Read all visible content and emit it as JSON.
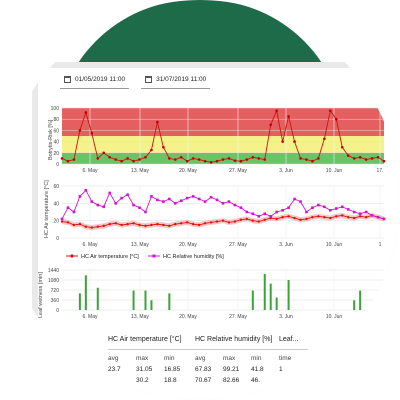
{
  "date_range": {
    "start": "01/05/2019 11:00",
    "end": "31/07/2019 11:00"
  },
  "colors": {
    "header_green": "#1e6b4a",
    "zone_red": "#e46060",
    "zone_yellow": "#f6f28a",
    "zone_green": "#6cc266",
    "line_red": "#e01010",
    "line_magenta": "#d014d0",
    "bar_green": "#3aa33a"
  },
  "chart_data": [
    {
      "type": "line",
      "ylabel": "Botrytis-Risk [%]",
      "ylim": [
        0,
        100
      ],
      "yticks": [
        "100",
        "80",
        "60",
        "40",
        "20",
        "0"
      ],
      "xticks": [
        "6. May",
        "13. May",
        "20. May",
        "27. May",
        "3. Jun",
        "10. Jun",
        "17."
      ],
      "zones": [
        {
          "name": "low",
          "from": 0,
          "to": 20,
          "color": "#6cc266"
        },
        {
          "name": "medium",
          "from": 20,
          "to": 50,
          "color": "#f6f28a"
        },
        {
          "name": "high",
          "from": 50,
          "to": 100,
          "color": "#e46060"
        }
      ],
      "series": [
        {
          "values": [
            10,
            5,
            8,
            60,
            92,
            55,
            10,
            20,
            12,
            8,
            5,
            10,
            5,
            8,
            12,
            25,
            75,
            30,
            10,
            8,
            12,
            5,
            10,
            8,
            5,
            3,
            5,
            8,
            10,
            6,
            5,
            8,
            12,
            10,
            8,
            70,
            95,
            40,
            85,
            40,
            10,
            8,
            5,
            10,
            45,
            95,
            80,
            30,
            15,
            10,
            12,
            8,
            10,
            12,
            5
          ]
        }
      ]
    },
    {
      "type": "line",
      "ylabel": "HC Air temperature [°C]",
      "ylim": [
        0,
        60
      ],
      "yticks": [
        "60",
        "40",
        "20",
        "0"
      ],
      "xticks": [
        "6. May",
        "13. May",
        "20. May",
        "27. May",
        "3. Jun",
        "10. Jun",
        "1"
      ],
      "legend": [
        "HC Air temperature [°C]",
        "HC Relative humidity [%]"
      ],
      "series": [
        {
          "name": "HC Air temperature [°C]",
          "values": [
            19,
            18,
            15,
            16,
            13,
            12,
            13,
            14,
            16,
            17,
            15,
            16,
            17,
            15,
            14,
            15,
            16,
            15,
            14,
            16,
            17,
            18,
            16,
            15,
            17,
            18,
            19,
            20,
            18,
            19,
            21,
            22,
            20,
            19,
            21,
            23,
            22,
            24,
            25,
            23,
            21,
            22,
            24,
            25,
            24,
            23,
            25,
            26,
            24,
            23,
            25,
            24,
            26,
            24,
            22
          ]
        },
        {
          "name": "HC Relative humidity [%]",
          "values": [
            22,
            35,
            30,
            48,
            55,
            42,
            38,
            36,
            52,
            40,
            46,
            50,
            38,
            35,
            30,
            48,
            44,
            42,
            45,
            40,
            43,
            46,
            48,
            45,
            42,
            47,
            44,
            40,
            42,
            38,
            35,
            30,
            28,
            25,
            28,
            25,
            30,
            32,
            35,
            45,
            42,
            30,
            35,
            38,
            36,
            32,
            34,
            36,
            33,
            30,
            28,
            30,
            26,
            24,
            22
          ]
        }
      ]
    },
    {
      "type": "bar",
      "ylabel": "Leaf wetness [min]",
      "ylim": [
        0,
        1440
      ],
      "yticks": [
        "1440",
        "1080",
        "720",
        "360",
        "0"
      ],
      "xticks": [
        "6. May",
        "13. May",
        "20. May",
        "27. May",
        "3. Jun",
        "10. Jun"
      ],
      "values": [
        0,
        0,
        0,
        600,
        1250,
        0,
        800,
        0,
        0,
        0,
        0,
        0,
        700,
        0,
        700,
        350,
        0,
        0,
        600,
        0,
        0,
        0,
        0,
        0,
        0,
        0,
        0,
        0,
        0,
        0,
        0,
        0,
        700,
        0,
        1300,
        950,
        450,
        0,
        1080,
        0,
        0,
        0,
        0,
        0,
        0,
        0,
        0,
        0,
        0,
        350,
        700,
        0,
        0,
        0,
        0
      ]
    }
  ],
  "stats": {
    "headers": [
      "HC Air temperature [°C]",
      "HC Relative humidity [%]",
      "Leaf..."
    ],
    "subheaders": [
      "avg",
      "max",
      "min",
      "avg",
      "max",
      "min",
      "time"
    ],
    "rows": [
      [
        "23.7",
        "31.05",
        "16.85",
        "67.83",
        "99.21",
        "41.8",
        "1"
      ],
      [
        "",
        "30.2",
        "18.8",
        "70.67",
        "82.66",
        "46.",
        ""
      ]
    ]
  }
}
